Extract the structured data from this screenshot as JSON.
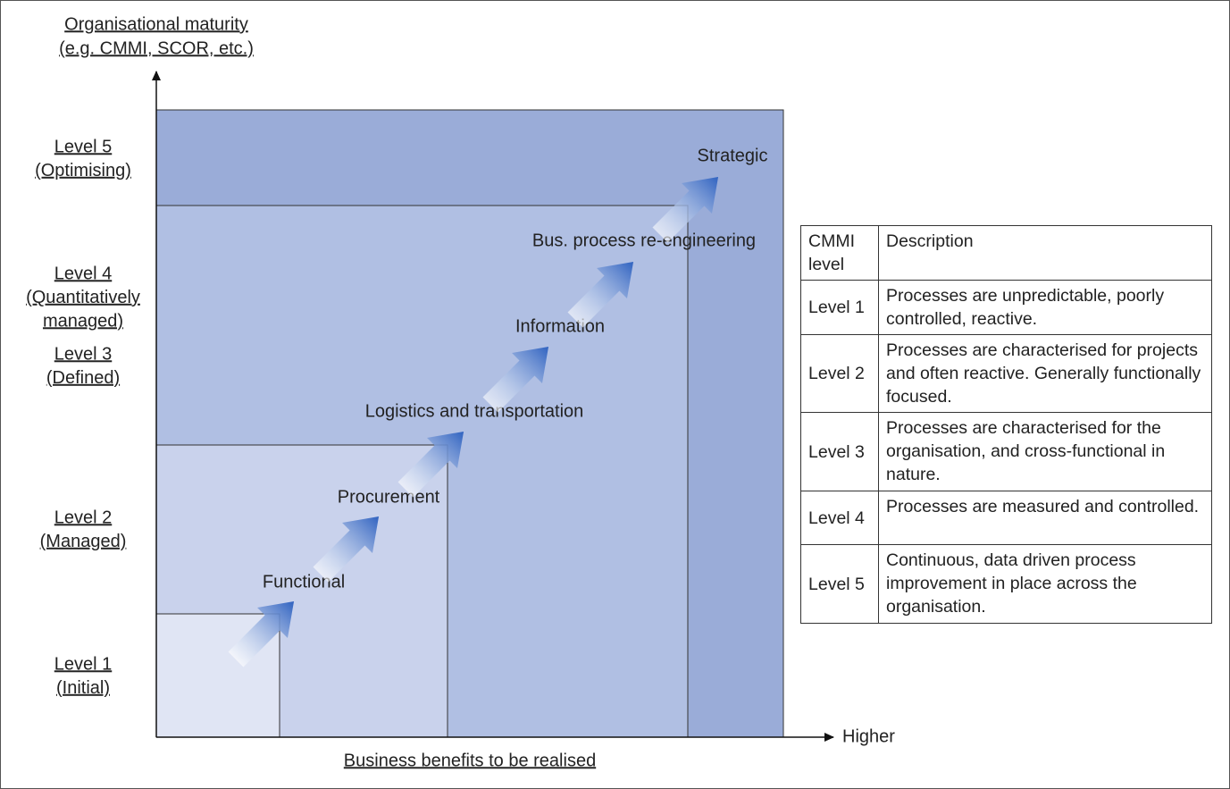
{
  "y_axis_title": [
    "Organisational maturity",
    "(e.g. CMMI, SCOR, etc.)"
  ],
  "x_axis_title": "Business benefits to be realised",
  "x_axis_end": "Higher",
  "levels": [
    [
      "Level 5",
      "(Optimising)"
    ],
    [
      "Level 4",
      "(Quantitatively",
      "managed)"
    ],
    [
      "Level 3",
      "(Defined)"
    ],
    [
      "Level 2",
      "(Managed)"
    ],
    [
      "Level 1",
      "(Initial)"
    ]
  ],
  "stages": [
    "Functional",
    "Procurement",
    "Logistics and transportation",
    "Information",
    "Bus. process re-engineering",
    "Strategic"
  ],
  "table": {
    "header": [
      "CMMI level",
      "Description"
    ],
    "rows": [
      [
        "Level 1",
        "Processes are unpredictable, poorly controlled, reactive."
      ],
      [
        "Level 2",
        "Processes are characterised for projects and often reactive. Generally functionally focused."
      ],
      [
        "Level 3",
        "Processes are characterised for the organisation, and cross-functional in nature."
      ],
      [
        "Level 4",
        "Processes are measured and controlled."
      ],
      [
        "Level 5",
        "Continuous, data driven process improvement in place across the organisation."
      ]
    ]
  }
}
